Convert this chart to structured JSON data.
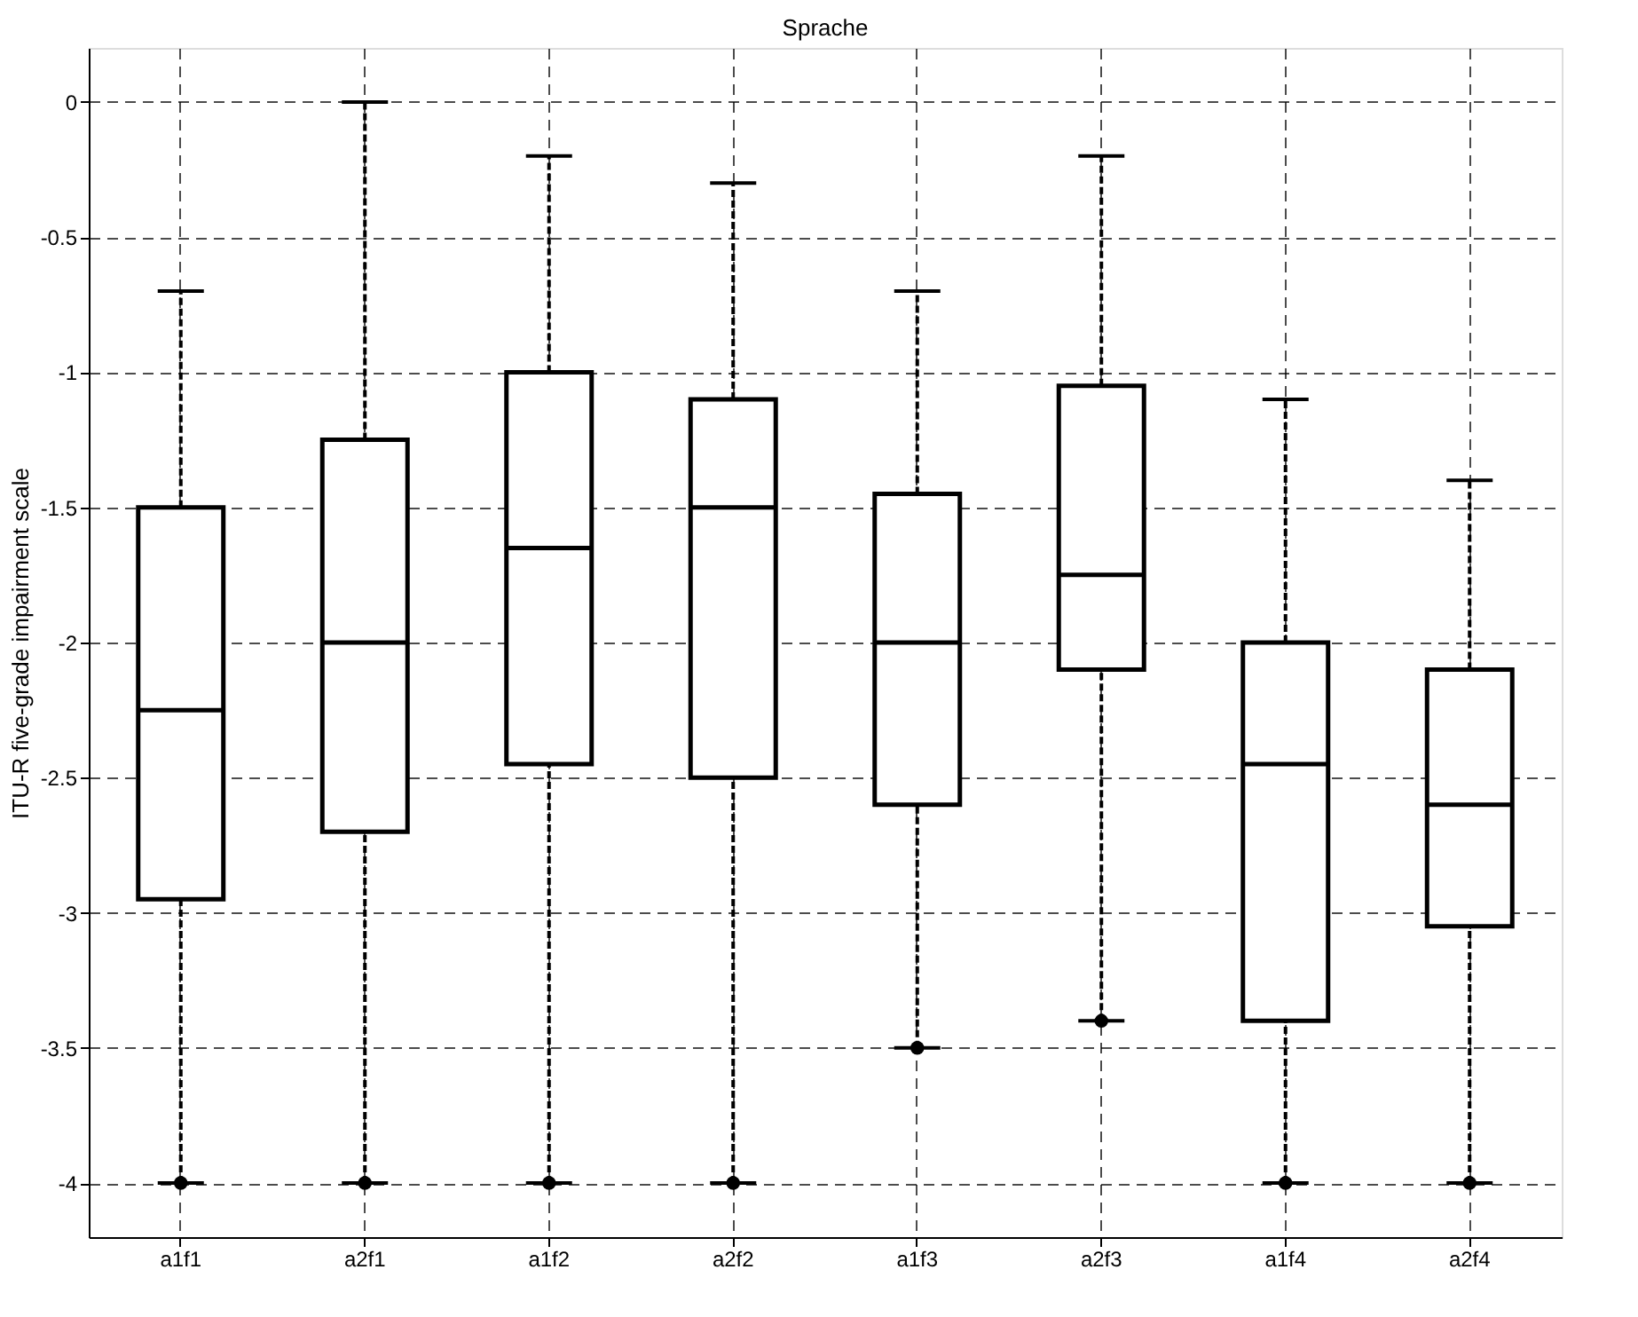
{
  "chart_data": {
    "type": "box",
    "title": "Sprache",
    "ylabel": "ITU-R five-grade impairment scale",
    "categories": [
      "a1f1",
      "a2f1",
      "a1f2",
      "a2f2",
      "a1f3",
      "a2f3",
      "a1f4",
      "a2f4"
    ],
    "boxes": [
      {
        "low": -4,
        "q1": -2.95,
        "median": -2.25,
        "q3": -1.5,
        "high": -0.7,
        "outliers": [
          -4
        ]
      },
      {
        "low": -4,
        "q1": -2.7,
        "median": -2,
        "q3": -1.25,
        "high": 0,
        "outliers": [
          -4
        ]
      },
      {
        "low": -4,
        "q1": -2.45,
        "median": -1.65,
        "q3": -1,
        "high": -0.2,
        "outliers": [
          -4
        ]
      },
      {
        "low": -4,
        "q1": -2.5,
        "median": -1.5,
        "q3": -1.1,
        "high": -0.3,
        "outliers": [
          -4
        ]
      },
      {
        "low": -3.5,
        "q1": -2.6,
        "median": -2,
        "q3": -1.45,
        "high": -0.7,
        "outliers": [
          -3.5
        ]
      },
      {
        "low": -3.4,
        "q1": -2.1,
        "median": -1.75,
        "q3": -1.05,
        "high": -0.2,
        "outliers": [
          -3.4
        ]
      },
      {
        "low": -4,
        "q1": -3.4,
        "median": -2.45,
        "q3": -2,
        "high": -1.1,
        "outliers": [
          -4
        ]
      },
      {
        "low": -4,
        "q1": -3.05,
        "median": -2.6,
        "q3": -2.1,
        "high": -1.4,
        "outliers": [
          -4
        ]
      }
    ],
    "ylim": [
      -4.2,
      0.2
    ],
    "yticks": [
      0,
      -0.5,
      -1,
      -1.5,
      -2,
      -2.5,
      -3,
      -3.5,
      -4
    ],
    "grid": true
  }
}
